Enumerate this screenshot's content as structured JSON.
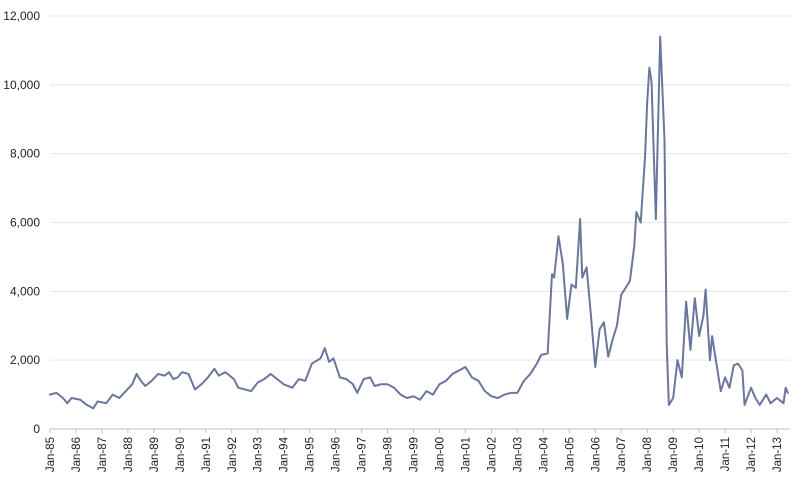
{
  "chart_data": {
    "type": "line",
    "title": "",
    "xlabel": "",
    "ylabel": "",
    "ylim": [
      0,
      12000
    ],
    "y_ticks": [
      0,
      2000,
      4000,
      6000,
      8000,
      10000,
      12000
    ],
    "y_tick_labels": [
      "0",
      "2,000",
      "4,000",
      "6,000",
      "8,000",
      "10,000",
      "12,000"
    ],
    "x_tick_labels": [
      "Jan-85",
      "Jan-86",
      "Jan-87",
      "Jan-88",
      "Jan-89",
      "Jan-90",
      "Jan-91",
      "Jan-92",
      "Jan-93",
      "Jan-94",
      "Jan-95",
      "Jan-96",
      "Jan-97",
      "Jan-98",
      "Jan-99",
      "Jan-00",
      "Jan-01",
      "Jan-02",
      "Jan-03",
      "Jan-04",
      "Jan-05",
      "Jan-06",
      "Jan-07",
      "Jan-08",
      "Jan-09",
      "Jan-10",
      "Jan-11",
      "Jan-12",
      "Jan-13"
    ],
    "grid": "horizontal",
    "line_color": "#6a769b",
    "grid_color": "#e6e6e6",
    "series": [
      {
        "points": [
          [
            "1985-01",
            1000
          ],
          [
            "1985-04",
            1050
          ],
          [
            "1985-07",
            900
          ],
          [
            "1985-09",
            750
          ],
          [
            "1985-11",
            900
          ],
          [
            "1986-03",
            850
          ],
          [
            "1986-06",
            700
          ],
          [
            "1986-09",
            600
          ],
          [
            "1986-11",
            800
          ],
          [
            "1987-03",
            750
          ],
          [
            "1987-06",
            1000
          ],
          [
            "1987-09",
            900
          ],
          [
            "1987-12",
            1100
          ],
          [
            "1988-03",
            1300
          ],
          [
            "1988-05",
            1600
          ],
          [
            "1988-07",
            1400
          ],
          [
            "1988-09",
            1250
          ],
          [
            "1988-12",
            1400
          ],
          [
            "1989-03",
            1600
          ],
          [
            "1989-06",
            1550
          ],
          [
            "1989-08",
            1650
          ],
          [
            "1989-10",
            1450
          ],
          [
            "1989-12",
            1500
          ],
          [
            "1990-02",
            1650
          ],
          [
            "1990-05",
            1600
          ],
          [
            "1990-08",
            1150
          ],
          [
            "1990-11",
            1300
          ],
          [
            "1991-02",
            1500
          ],
          [
            "1991-05",
            1750
          ],
          [
            "1991-07",
            1550
          ],
          [
            "1991-10",
            1650
          ],
          [
            "1991-12",
            1550
          ],
          [
            "1992-02",
            1450
          ],
          [
            "1992-04",
            1200
          ],
          [
            "1992-07",
            1150
          ],
          [
            "1992-10",
            1100
          ],
          [
            "1993-01",
            1350
          ],
          [
            "1993-04",
            1450
          ],
          [
            "1993-07",
            1600
          ],
          [
            "1993-10",
            1450
          ],
          [
            "1994-01",
            1300
          ],
          [
            "1994-05",
            1200
          ],
          [
            "1994-08",
            1450
          ],
          [
            "1994-11",
            1400
          ],
          [
            "1995-02",
            1900
          ],
          [
            "1995-06",
            2050
          ],
          [
            "1995-08",
            2350
          ],
          [
            "1995-10",
            1950
          ],
          [
            "1995-12",
            2050
          ],
          [
            "1996-03",
            1500
          ],
          [
            "1996-06",
            1450
          ],
          [
            "1996-09",
            1300
          ],
          [
            "1996-11",
            1050
          ],
          [
            "1997-02",
            1450
          ],
          [
            "1997-05",
            1500
          ],
          [
            "1997-07",
            1250
          ],
          [
            "1997-10",
            1300
          ],
          [
            "1998-01",
            1300
          ],
          [
            "1998-04",
            1200
          ],
          [
            "1998-07",
            1000
          ],
          [
            "1998-10",
            900
          ],
          [
            "1999-01",
            950
          ],
          [
            "1999-04",
            850
          ],
          [
            "1999-07",
            1100
          ],
          [
            "1999-10",
            1000
          ],
          [
            "2000-01",
            1300
          ],
          [
            "2000-04",
            1400
          ],
          [
            "2000-07",
            1600
          ],
          [
            "2000-10",
            1700
          ],
          [
            "2001-01",
            1800
          ],
          [
            "2001-04",
            1500
          ],
          [
            "2001-07",
            1400
          ],
          [
            "2001-10",
            1100
          ],
          [
            "2002-01",
            950
          ],
          [
            "2002-04",
            900
          ],
          [
            "2002-07",
            1000
          ],
          [
            "2002-10",
            1050
          ],
          [
            "2003-01",
            1050
          ],
          [
            "2003-04",
            1400
          ],
          [
            "2003-07",
            1600
          ],
          [
            "2003-10",
            1900
          ],
          [
            "2003-12",
            2150
          ],
          [
            "2004-03",
            2200
          ],
          [
            "2004-05",
            4500
          ],
          [
            "2004-06",
            4400
          ],
          [
            "2004-08",
            5600
          ],
          [
            "2004-10",
            4800
          ],
          [
            "2004-12",
            3200
          ],
          [
            "2005-02",
            4200
          ],
          [
            "2005-04",
            4100
          ],
          [
            "2005-06",
            6100
          ],
          [
            "2005-07",
            4400
          ],
          [
            "2005-09",
            4700
          ],
          [
            "2005-11",
            3300
          ],
          [
            "2006-01",
            1800
          ],
          [
            "2006-03",
            2900
          ],
          [
            "2006-05",
            3100
          ],
          [
            "2006-07",
            2100
          ],
          [
            "2006-09",
            2600
          ],
          [
            "2006-11",
            3000
          ],
          [
            "2007-01",
            3900
          ],
          [
            "2007-03",
            4100
          ],
          [
            "2007-05",
            4300
          ],
          [
            "2007-07",
            5300
          ],
          [
            "2007-08",
            6300
          ],
          [
            "2007-10",
            6000
          ],
          [
            "2007-12",
            7900
          ],
          [
            "2008-01",
            9500
          ],
          [
            "2008-02",
            10500
          ],
          [
            "2008-03",
            10100
          ],
          [
            "2008-05",
            6100
          ],
          [
            "2008-07",
            11400
          ],
          [
            "2008-09",
            8400
          ],
          [
            "2008-10",
            2500
          ],
          [
            "2008-11",
            700
          ],
          [
            "2009-01",
            900
          ],
          [
            "2009-03",
            2000
          ],
          [
            "2009-05",
            1500
          ],
          [
            "2009-07",
            3700
          ],
          [
            "2009-09",
            2300
          ],
          [
            "2009-11",
            3800
          ],
          [
            "2010-01",
            2700
          ],
          [
            "2010-03",
            3300
          ],
          [
            "2010-04",
            4050
          ],
          [
            "2010-06",
            2000
          ],
          [
            "2010-07",
            2700
          ],
          [
            "2010-09",
            1900
          ],
          [
            "2010-11",
            1100
          ],
          [
            "2011-01",
            1500
          ],
          [
            "2011-03",
            1200
          ],
          [
            "2011-05",
            1850
          ],
          [
            "2011-07",
            1900
          ],
          [
            "2011-09",
            1700
          ],
          [
            "2011-10",
            700
          ],
          [
            "2012-01",
            1200
          ],
          [
            "2012-03",
            900
          ],
          [
            "2012-05",
            700
          ],
          [
            "2012-08",
            1000
          ],
          [
            "2012-10",
            750
          ],
          [
            "2013-01",
            900
          ],
          [
            "2013-04",
            750
          ],
          [
            "2013-05",
            1200
          ],
          [
            "2013-06",
            1050
          ]
        ]
      }
    ]
  }
}
